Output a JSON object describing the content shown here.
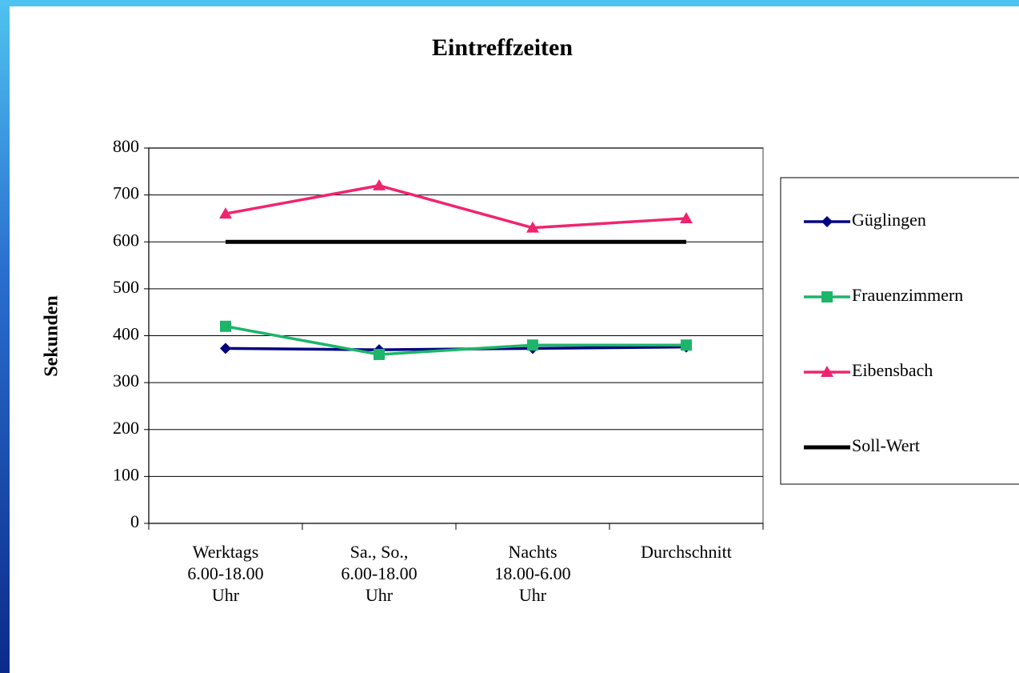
{
  "chart_data": {
    "type": "line",
    "title": "Eintreffzeiten",
    "y_label": "Sekunden",
    "categories": [
      "Werktags\n6.00-18.00\nUhr",
      "Sa., So.,\n6.00-18.00\nUhr",
      "Nachts\n18.00-6.00\nUhr",
      "Durchschnitt"
    ],
    "series": [
      {
        "name": "Güglingen",
        "color": "#000080",
        "marker": "diamond",
        "values": [
          373,
          370,
          373,
          376
        ]
      },
      {
        "name": "Frauenzimmern",
        "color": "#1db56a",
        "marker": "square",
        "values": [
          420,
          360,
          380,
          380
        ]
      },
      {
        "name": "Eibensbach",
        "color": "#f0246e",
        "marker": "triangle",
        "values": [
          660,
          720,
          630,
          650
        ]
      },
      {
        "name": "Soll-Wert",
        "color": "#000000",
        "marker": null,
        "values": [
          600,
          600,
          600,
          600
        ]
      }
    ],
    "ylim": [
      0,
      800
    ],
    "yticks": [
      0,
      100,
      200,
      300,
      400,
      500,
      600,
      700,
      800
    ],
    "grid": true,
    "legend": "right"
  }
}
